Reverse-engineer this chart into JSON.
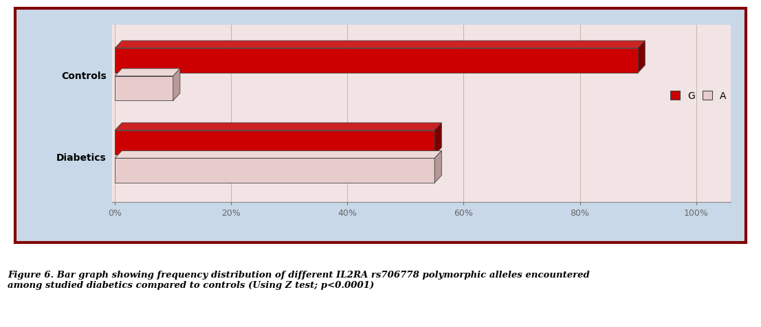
{
  "categories": [
    "Controls",
    "Diabetics"
  ],
  "G_values": [
    0.9,
    0.55
  ],
  "A_values": [
    0.1,
    0.55
  ],
  "G_color_face": "#CC0000",
  "G_color_top": "#CC2222",
  "G_color_side": "#7A0000",
  "A_color_face": "#E8CCCC",
  "A_color_top": "#EDD8D8",
  "A_color_side": "#B89898",
  "outer_bg": "#C8D8E8",
  "plot_bg": "#F2E4E4",
  "border_color": "#800000",
  "grid_color": "#C8B0A8",
  "text_color": "#000000",
  "legend_G_label": "G",
  "legend_A_label": "A",
  "xlabel_ticks": [
    "0%",
    "20%",
    "40%",
    "60%",
    "80%",
    "100%"
  ],
  "xlabel_values": [
    0.0,
    0.2,
    0.4,
    0.6,
    0.8,
    1.0
  ],
  "caption_bold": "Figure 6.",
  "caption_rest": " Bar graph showing frequency distribution of different IL2RA rs706778 polymorphic alleles encountered\namong studied diabetics compared to controls (Using Z test; p<0.0001)",
  "figsize": [
    11.07,
    4.77
  ],
  "dpi": 100
}
